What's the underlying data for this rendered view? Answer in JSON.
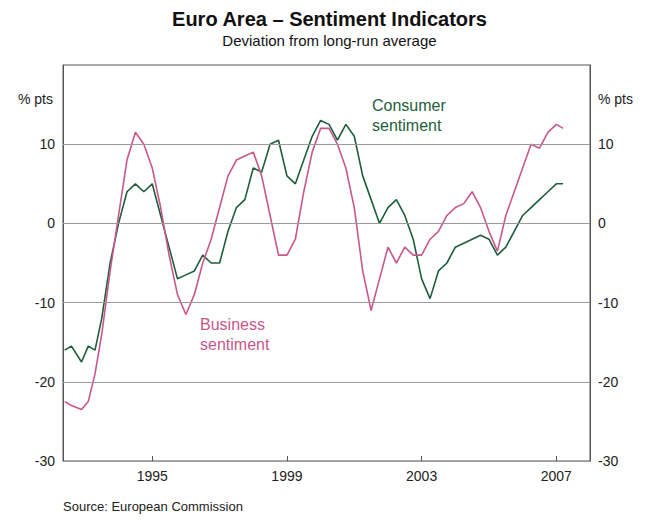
{
  "chart_data": {
    "type": "line",
    "title": "Euro Area – Sentiment Indicators",
    "subtitle": "Deviation from long-run average",
    "ylabel": "% pts",
    "y2label": "% pts",
    "source": "Source: European Commission",
    "x": [
      1992.4,
      1992.6,
      1992.9,
      1993.1,
      1993.3,
      1993.5,
      1993.75,
      1994.0,
      1994.25,
      1994.5,
      1994.75,
      1995.0,
      1995.25,
      1995.5,
      1995.75,
      1996.0,
      1996.25,
      1996.5,
      1996.75,
      1997.0,
      1997.25,
      1997.5,
      1997.75,
      1998.0,
      1998.25,
      1998.5,
      1998.75,
      1999.0,
      1999.25,
      1999.5,
      1999.75,
      2000.0,
      2000.25,
      2000.5,
      2000.75,
      2001.0,
      2001.25,
      2001.5,
      2001.75,
      2002.0,
      2002.25,
      2002.5,
      2002.75,
      2003.0,
      2003.25,
      2003.5,
      2003.75,
      2004.0,
      2004.25,
      2004.5,
      2004.75,
      2005.0,
      2005.25,
      2005.5,
      2005.75,
      2006.0,
      2006.25,
      2006.5,
      2006.75,
      2007.0,
      2007.2
    ],
    "series": [
      {
        "name": "Consumer sentiment",
        "color": "#1e5e3b",
        "values": [
          -16,
          -15.5,
          -17.5,
          -15.5,
          -16,
          -12,
          -5,
          0,
          4,
          5,
          4,
          5,
          1,
          -3,
          -7,
          -6.5,
          -6,
          -4,
          -5,
          -5,
          -1,
          2,
          3,
          7,
          6.5,
          10,
          10.5,
          6,
          5,
          8,
          11,
          13,
          12.5,
          10.5,
          12.5,
          11,
          6,
          3,
          0,
          2,
          3,
          1,
          -2,
          -7,
          -9.5,
          -6,
          -5,
          -3,
          -2.5,
          -2,
          -1.5,
          -2,
          -4,
          -3,
          -1,
          1,
          2,
          3,
          4,
          5,
          5
        ]
      },
      {
        "name": "Business sentiment",
        "color": "#c8578c",
        "values": [
          -22.5,
          -23,
          -23.5,
          -22.5,
          -19,
          -14,
          -6,
          1,
          8,
          11.5,
          10,
          7,
          2,
          -4,
          -9,
          -11.5,
          -9,
          -5,
          -2,
          2,
          6,
          8,
          8.5,
          9,
          6,
          1,
          -4,
          -4,
          -2,
          4,
          9,
          12,
          12,
          10,
          7,
          2,
          -6,
          -11,
          -7,
          -3,
          -5,
          -3,
          -4,
          -4,
          -2,
          -1,
          1,
          2,
          2.5,
          4,
          2,
          -1,
          -3.5,
          1,
          4,
          7,
          10,
          9.5,
          11.5,
          12.5,
          12
        ]
      }
    ],
    "annotations": [
      {
        "text": "Consumer\nsentiment",
        "series": "Consumer sentiment"
      },
      {
        "text": "Business\nsentiment",
        "series": "Business sentiment"
      }
    ],
    "xlim": [
      1992.35,
      2008
    ],
    "xticks": [
      1995,
      1999,
      2003,
      2007
    ],
    "ylim": [
      -30,
      20
    ],
    "yticks": [
      -30,
      -20,
      -10,
      0,
      10
    ],
    "y2lim": [
      -30,
      20
    ],
    "y2ticks": [
      -30,
      -20,
      -10,
      0,
      10
    ],
    "grid": true
  }
}
